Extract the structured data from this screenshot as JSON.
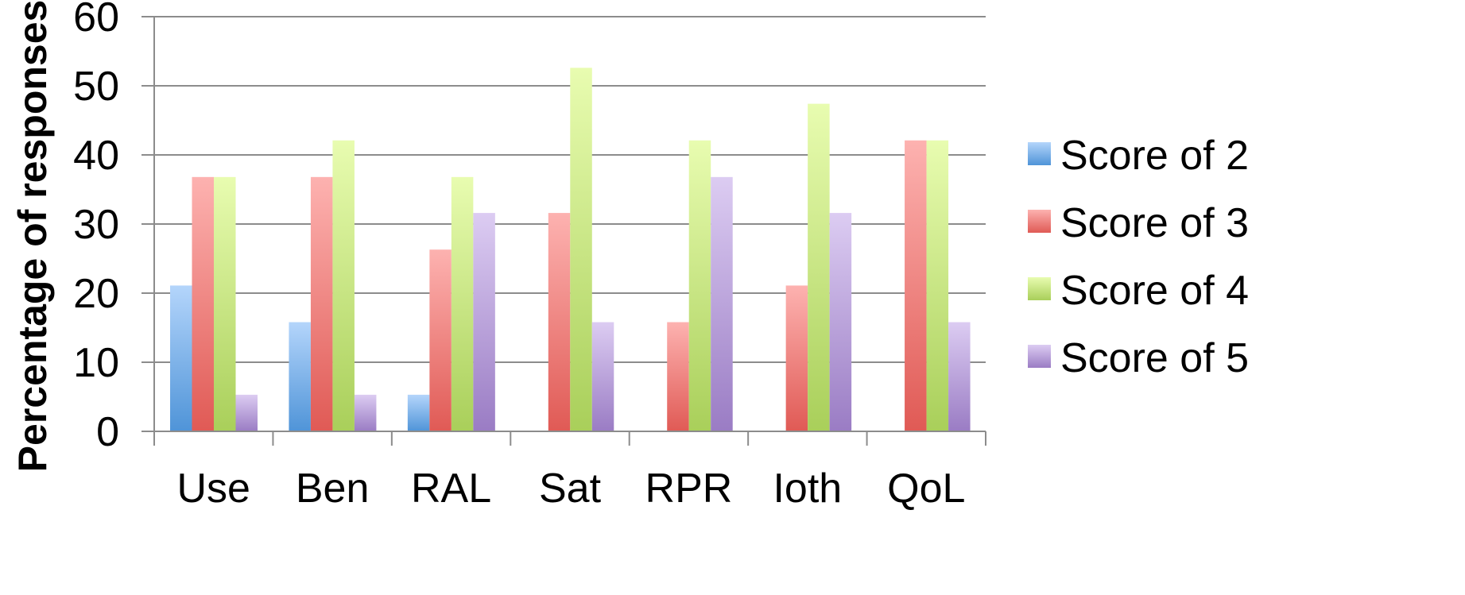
{
  "chart_data": {
    "type": "bar",
    "title": "",
    "xlabel": "",
    "ylabel": "Percentage of responses",
    "ylim": [
      0,
      60
    ],
    "yticks": [
      0,
      10,
      20,
      30,
      40,
      50,
      60
    ],
    "grid": true,
    "legend_position": "right",
    "categories": [
      "Use",
      "Ben",
      "RAL",
      "Sat",
      "RPR",
      "Ioth",
      "QoL"
    ],
    "series": [
      {
        "name": "Score of 2",
        "color_top": "#b4d5fb",
        "color_bottom": "#4f94d8",
        "values": [
          21.1,
          15.8,
          5.3,
          0,
          0,
          0,
          0
        ]
      },
      {
        "name": "Score of 3",
        "color_top": "#fdb2b0",
        "color_bottom": "#e05a55",
        "values": [
          36.8,
          36.8,
          26.3,
          31.6,
          15.8,
          21.1,
          42.1
        ]
      },
      {
        "name": "Score of 4",
        "color_top": "#e8fcb0",
        "color_bottom": "#a9cf5a",
        "values": [
          36.8,
          42.1,
          36.8,
          52.6,
          42.1,
          47.4,
          42.1
        ]
      },
      {
        "name": "Score of 5",
        "color_top": "#dcccf2",
        "color_bottom": "#9a7cc4",
        "values": [
          5.3,
          5.3,
          31.6,
          15.8,
          36.8,
          31.6,
          15.8
        ]
      }
    ]
  }
}
